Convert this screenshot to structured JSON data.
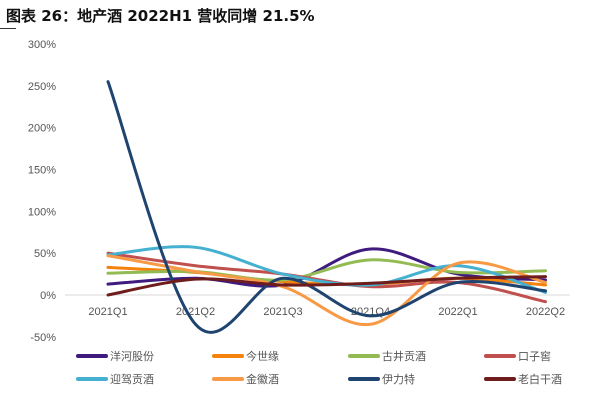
{
  "chart_data": {
    "type": "line",
    "title": "图表 26：地产酒 2022H1 营收同增 21.5%",
    "xlabel": "",
    "ylabel": "",
    "categories": [
      "2021Q1",
      "2021Q2",
      "2021Q3",
      "2021Q4",
      "2022Q1",
      "2022Q2"
    ],
    "ylim": [
      -50,
      300
    ],
    "yticks": [
      -50,
      0,
      50,
      100,
      150,
      200,
      250,
      300
    ],
    "ytick_labels": [
      "-50%",
      "0%",
      "50%",
      "100%",
      "150%",
      "200%",
      "250%",
      "300%"
    ],
    "grid": false,
    "legend": "bottom",
    "series": [
      {
        "name": "洋河股份",
        "color": "#3f1a7f",
        "values": [
          13,
          20,
          12,
          55,
          25,
          18
        ]
      },
      {
        "name": "今世缘",
        "color": "#f5820d",
        "values": [
          33,
          27,
          16,
          13,
          20,
          12
        ]
      },
      {
        "name": "古井贡酒",
        "color": "#93bb53",
        "values": [
          26,
          28,
          18,
          42,
          27,
          29
        ]
      },
      {
        "name": "口子窖",
        "color": "#c0504d",
        "values": [
          50,
          35,
          25,
          10,
          15,
          -8
        ]
      },
      {
        "name": "迎驾贡酒",
        "color": "#45b0d0",
        "values": [
          48,
          57,
          25,
          12,
          35,
          3
        ]
      },
      {
        "name": "金徽酒",
        "color": "#f89a45",
        "values": [
          47,
          28,
          10,
          -35,
          38,
          15
        ]
      },
      {
        "name": "伊力特",
        "color": "#1f4470",
        "values": [
          255,
          -35,
          20,
          -25,
          15,
          5
        ]
      },
      {
        "name": "老白干酒",
        "color": "#6e1c1c",
        "values": [
          0,
          19,
          12,
          14,
          20,
          22
        ]
      }
    ]
  }
}
